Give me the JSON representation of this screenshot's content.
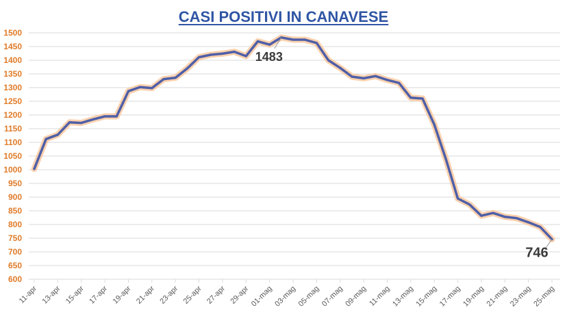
{
  "chart_data": {
    "type": "line",
    "title": "CASI POSITIVI IN CANAVESE",
    "xlabel": "",
    "ylabel": "",
    "ylim": [
      600,
      1500
    ],
    "ytick_step": 50,
    "grid": true,
    "legend": "none",
    "x_tick_labels": [
      "11-apr",
      "13-apr",
      "15-apr",
      "17-apr",
      "19-apr",
      "21-apr",
      "23-apr",
      "25-apr",
      "27-apr",
      "29-apr",
      "01-mag",
      "03-mag",
      "05-mag",
      "07-mag",
      "09-mag",
      "11-mag",
      "13-mag",
      "15-mag",
      "17-mag",
      "19-mag",
      "21-mag",
      "23-mag",
      "25-mag"
    ],
    "x": [
      "11-apr",
      "12-apr",
      "13-apr",
      "14-apr",
      "15-apr",
      "16-apr",
      "17-apr",
      "18-apr",
      "19-apr",
      "20-apr",
      "21-apr",
      "22-apr",
      "23-apr",
      "24-apr",
      "25-apr",
      "26-apr",
      "27-apr",
      "28-apr",
      "29-apr",
      "30-apr",
      "01-mag",
      "02-mag",
      "03-mag",
      "04-mag",
      "05-mag",
      "06-mag",
      "07-mag",
      "08-mag",
      "09-mag",
      "10-mag",
      "11-mag",
      "12-mag",
      "13-mag",
      "14-mag",
      "15-mag",
      "16-mag",
      "17-mag",
      "18-mag",
      "19-mag",
      "20-mag",
      "21-mag",
      "22-mag",
      "23-mag",
      "24-mag",
      "25-mag"
    ],
    "series": [
      {
        "values": [
          1003,
          1112,
          1128,
          1173,
          1171,
          1184,
          1195,
          1195,
          1287,
          1302,
          1298,
          1331,
          1336,
          1370,
          1411,
          1420,
          1424,
          1431,
          1415,
          1469,
          1457,
          1483,
          1475,
          1475,
          1463,
          1400,
          1372,
          1340,
          1334,
          1342,
          1328,
          1317,
          1263,
          1260,
          1165,
          1037,
          895,
          873,
          832,
          842,
          828,
          823,
          808,
          791,
          746
        ]
      }
    ],
    "annotations": [
      {
        "text": "1483",
        "x": "02-mag",
        "y": 1483
      },
      {
        "text": "746",
        "x": "25-mag",
        "y": 746
      }
    ],
    "colors": {
      "line": "#4e5fa8",
      "glow": "#f9c9a0",
      "title": "#2f55a4",
      "ytick": "#e07b28",
      "grid": "#d9d9d9"
    }
  }
}
